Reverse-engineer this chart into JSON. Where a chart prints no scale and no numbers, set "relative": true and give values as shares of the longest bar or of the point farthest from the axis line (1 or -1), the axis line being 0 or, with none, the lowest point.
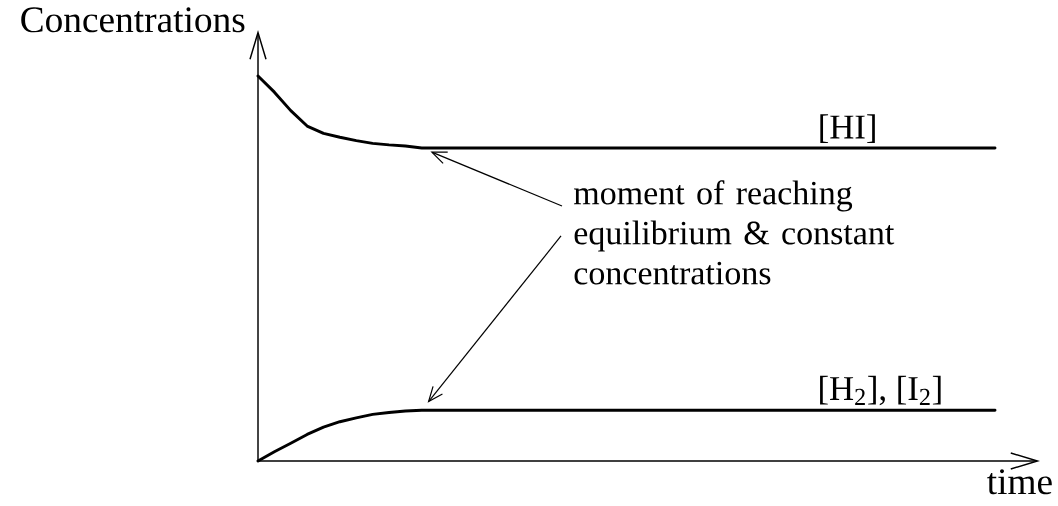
{
  "chart_data": {
    "type": "line",
    "relative": true,
    "xlabel": "time",
    "ylabel": "Concentrations",
    "categories": [
      null,
      null,
      null,
      null,
      null,
      null,
      null,
      null,
      null,
      null,
      null,
      null,
      null,
      null,
      null,
      null,
      null,
      null,
      null,
      null,
      null,
      null,
      null,
      null,
      null,
      null,
      null,
      null,
      null,
      null,
      null,
      null,
      null,
      null,
      null,
      null,
      null,
      null,
      null,
      null,
      null,
      null,
      null,
      null,
      null,
      null
    ],
    "series": [
      {
        "name": "[HI]",
        "color": "#000000",
        "values": [
          1,
          0.958,
          0.91,
          0.87,
          0.851,
          0.841,
          0.832,
          0.825,
          0.821,
          0.818,
          0.813,
          0.813,
          0.813,
          0.813,
          0.813,
          0.813,
          0.813,
          0.813,
          0.813,
          0.813,
          0.813,
          0.813,
          0.813,
          0.813,
          0.813,
          0.813,
          0.813,
          0.813,
          0.813,
          0.813,
          0.813,
          0.813,
          0.813,
          0.813,
          0.813,
          0.813,
          0.813,
          0.813,
          0.813,
          0.813,
          0.813,
          0.813,
          0.813,
          0.813,
          0.813,
          0.813
        ]
      },
      {
        "name": "[H$_{2}$], [I$_{2}$]",
        "color": "#000000",
        "values": [
          0,
          0.024,
          0.046,
          0.069,
          0.088,
          0.102,
          0.112,
          0.121,
          0.126,
          0.13,
          0.132,
          0.132,
          0.132,
          0.132,
          0.132,
          0.132,
          0.132,
          0.132,
          0.132,
          0.132,
          0.132,
          0.132,
          0.132,
          0.132,
          0.132,
          0.132,
          0.132,
          0.132,
          0.132,
          0.132,
          0.132,
          0.132,
          0.132,
          0.132,
          0.132,
          0.132,
          0.132,
          0.132,
          0.132,
          0.132,
          0.132,
          0.132,
          0.132,
          0.132,
          0.132,
          0.132
        ]
      }
    ],
    "annotations": [
      "moment of reaching equilibrium & constant concentrations"
    ],
    "line_style": "solid"
  }
}
